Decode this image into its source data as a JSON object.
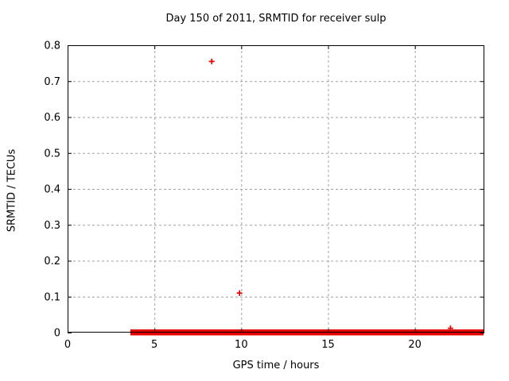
{
  "chart_data": {
    "type": "scatter",
    "title": "Day 150 of 2011, SRMTID for receiver sulp",
    "xlabel": "GPS time / hours",
    "ylabel": "SRMTID / TECUs",
    "xlim": [
      0,
      24
    ],
    "ylim": [
      0,
      0.8
    ],
    "xticks": [
      0,
      5,
      10,
      15,
      20
    ],
    "yticks": [
      0,
      0.1,
      0.2,
      0.3,
      0.4,
      0.5,
      0.6,
      0.7,
      0.8
    ],
    "grid": true,
    "legend": "none",
    "marker": "plus",
    "series": [
      {
        "name": "SRMTID",
        "color": "#e60000",
        "outlier_points": [
          [
            8.3,
            0.755
          ],
          [
            9.9,
            0.11
          ],
          [
            22.05,
            0.012
          ]
        ],
        "dense_band": {
          "description": "continuous run of near-zero measurements rendered as overlapping plus markers",
          "y": 0,
          "x_start": 3.75,
          "x_end": 23.82
        }
      }
    ],
    "colors": {
      "marker": "#e60000",
      "grid": "#a0a0a0",
      "border": "#000000",
      "background": "#ffffff",
      "text": "#000000"
    }
  }
}
